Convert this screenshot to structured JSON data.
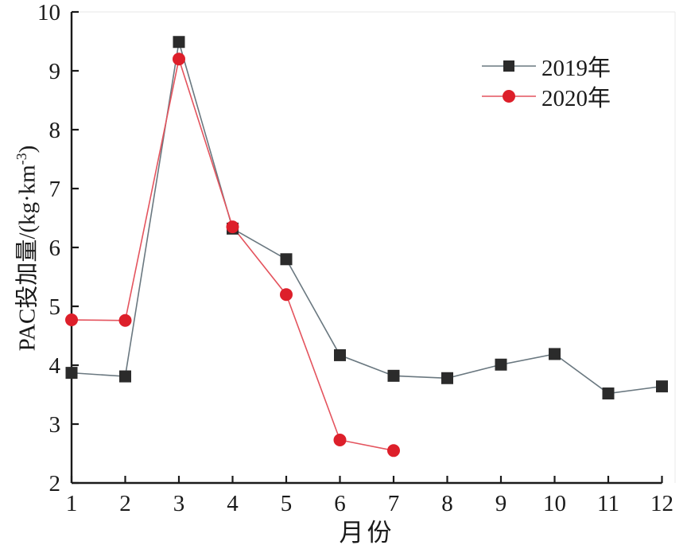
{
  "figure": {
    "background": "#ffffff",
    "text_color": "#1a1a1a",
    "axis_color": "#1a1a1a"
  },
  "chart_data": {
    "type": "line",
    "title": "",
    "xlabel": "月份",
    "ylabel": "PAC投加量/(kg·km⁻³)",
    "ylabel_parts": {
      "base": "PAC投加量/(kg·km",
      "superscript": "-3",
      "close": ")"
    },
    "x_ticks": [
      1,
      2,
      3,
      4,
      5,
      6,
      7,
      8,
      9,
      10,
      11,
      12
    ],
    "y_ticks": [
      2,
      3,
      4,
      5,
      6,
      7,
      8,
      9,
      10
    ],
    "xlim": [
      1,
      12
    ],
    "ylim": [
      2,
      10
    ],
    "grid": false,
    "legend_position": "upper-right",
    "series": [
      {
        "name": "2019年",
        "marker": "square",
        "marker_color": "#2b2b2b",
        "line_color": "#6a7880",
        "x": [
          1,
          2,
          3,
          4,
          5,
          6,
          7,
          8,
          9,
          10,
          11,
          12
        ],
        "values": [
          3.87,
          3.81,
          9.49,
          6.32,
          5.8,
          4.17,
          3.82,
          3.78,
          4.01,
          4.19,
          3.52,
          3.64
        ]
      },
      {
        "name": "2020年",
        "marker": "circle",
        "marker_color": "#dd1f2a",
        "line_color": "#e4545e",
        "x": [
          1,
          2,
          3,
          4,
          5,
          6,
          7
        ],
        "values": [
          4.77,
          4.76,
          9.2,
          6.35,
          5.2,
          2.73,
          2.55
        ]
      }
    ]
  }
}
